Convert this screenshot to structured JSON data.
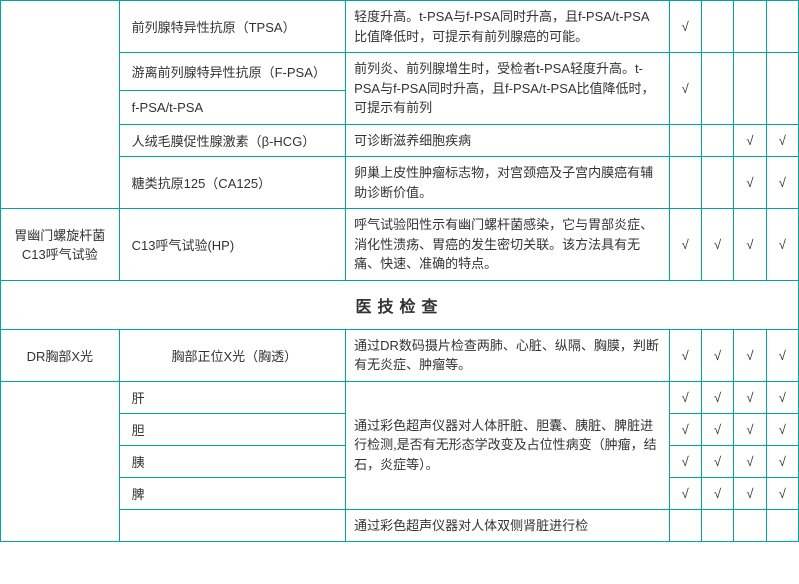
{
  "colors": {
    "border": "#00a89c",
    "text": "#333333",
    "background": "#ffffff"
  },
  "checkmark": "√",
  "sectionHeader": "医技检查",
  "rows": {
    "tpsa": {
      "item": "前列腺特异性抗原（TPSA）",
      "desc": "轻度升高。t-PSA与f-PSA同时升高，且f-PSA/t-PSA比值降低时，可提示有前列腺癌的可能。",
      "c1": "√",
      "c2": "",
      "c3": "",
      "c4": ""
    },
    "fpsa": {
      "item": "游离前列腺特异性抗原（F-PSA）",
      "desc": "前列炎、前列腺增生时，受检者t-PSA轻度升高。t-PSA与f-PSA同时升高，且f-PSA/t-PSA比值降低时，可提示有前列",
      "c1": "√",
      "c2": "",
      "c3": "",
      "c4": ""
    },
    "ratio": {
      "item": "f-PSA/t-PSA"
    },
    "bhcg": {
      "item": "人绒毛膜促性腺激素（β-HCG）",
      "desc": "可诊断滋养细胞疾病",
      "c1": "",
      "c2": "",
      "c3": "√",
      "c4": "√"
    },
    "ca125": {
      "item": "糖类抗原125（CA125）",
      "desc": "卵巢上皮性肿瘤标志物，对宫颈癌及子宫内膜癌有辅助诊断价值。",
      "c1": "",
      "c2": "",
      "c3": "√",
      "c4": "√"
    },
    "c13": {
      "category": "胃幽门螺旋杆菌C13呼气试验",
      "item": "C13呼气试验(HP)",
      "desc": "呼气试验阳性示有幽门螺杆菌感染，它与胃部炎症、消化性溃疡、胃癌的发生密切关联。该方法具有无痛、快速、准确的特点。",
      "c1": "√",
      "c2": "√",
      "c3": "√",
      "c4": "√"
    },
    "xray": {
      "category": "DR胸部X光",
      "item": "胸部正位X光（胸透）",
      "desc": "通过DR数码摄片检查两肺、心脏、纵隔、胸膜，判断有无炎症、肿瘤等。",
      "c1": "√",
      "c2": "√",
      "c3": "√",
      "c4": "√"
    },
    "liver": {
      "item": "肝",
      "c1": "√",
      "c2": "√",
      "c3": "√",
      "c4": "√"
    },
    "gallbladder": {
      "item": "胆",
      "c1": "√",
      "c2": "√",
      "c3": "√",
      "c4": "√"
    },
    "pancreas": {
      "item": "胰",
      "c1": "√",
      "c2": "√",
      "c3": "√",
      "c4": "√"
    },
    "spleen": {
      "item": "脾",
      "c1": "√",
      "c2": "√",
      "c3": "√",
      "c4": "√"
    },
    "ultrasoundDesc": "通过彩色超声仪器对人体肝脏、胆囊、胰脏、脾脏进行检测,是否有无形态学改变及占位性病变（肿瘤，结石，炎症等）。",
    "kidneyDesc": "通过彩色超声仪器对人体双侧肾脏进行检"
  }
}
